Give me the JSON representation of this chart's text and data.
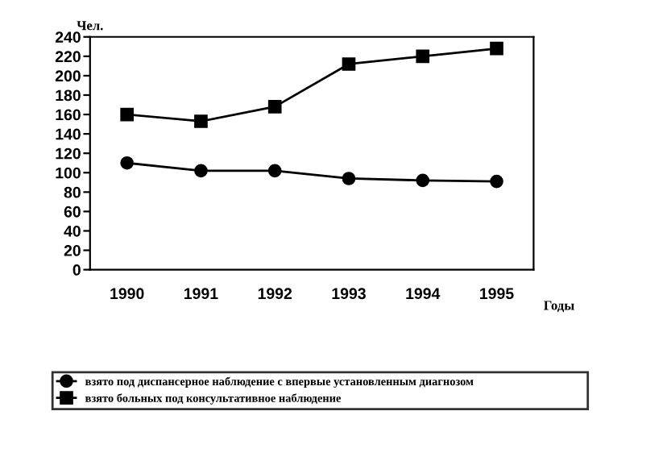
{
  "chart_data": {
    "type": "line",
    "xlabel": "Годы",
    "ylabel": "Чел.",
    "categories": [
      "1990",
      "1991",
      "1992",
      "1993",
      "1994",
      "1995"
    ],
    "series": [
      {
        "name": "взято под диспансерное наблюдение с впервые установленным диагнозом",
        "color": "#000000",
        "marker": "circle",
        "values": [
          110,
          102,
          102,
          94,
          92,
          91
        ]
      },
      {
        "name": "взято больных под консультативное наблюдение",
        "color": "#000000",
        "marker": "square",
        "values": [
          160,
          153,
          168,
          212,
          220,
          228
        ]
      }
    ],
    "ylim": [
      0,
      240
    ],
    "yticks": [
      0,
      20,
      40,
      60,
      80,
      100,
      120,
      140,
      160,
      180,
      200,
      220,
      240
    ],
    "grid": false,
    "legend": "bottom",
    "line_style": "solid"
  }
}
